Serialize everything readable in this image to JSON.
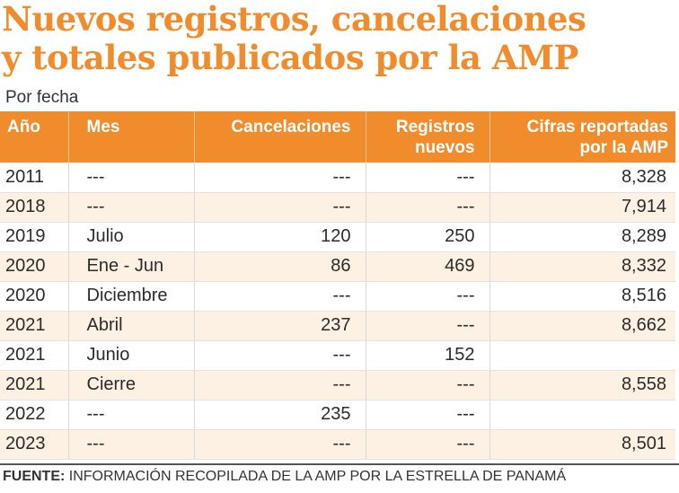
{
  "title_line1": "Nuevos registros, cancelaciones",
  "title_line2": "y totales publicados por la AMP",
  "subtitle": "Por fecha",
  "colors": {
    "header_bg": "#f08c2c",
    "title": "#f08c2c",
    "zebra": "#fdf1e3"
  },
  "chart_data": {
    "type": "table",
    "title": "Nuevos registros, cancelaciones y totales publicados por la AMP",
    "subtitle": "Por fecha",
    "columns": [
      "Año",
      "Mes",
      "Cancelaciones",
      "Registros nuevos",
      "Cifras reportadas por la AMP"
    ],
    "header": {
      "anio": "Año",
      "mes": "Mes",
      "cancelaciones": "Cancelaciones",
      "registros_l1": "Registros",
      "registros_l2": "nuevos",
      "cifras_l1": "Cifras reportadas",
      "cifras_l2": "por la AMP"
    },
    "rows": [
      {
        "anio": "2011",
        "mes": "---",
        "cancelaciones": "---",
        "registros": "---",
        "cifras": "8,328"
      },
      {
        "anio": "2018",
        "mes": "---",
        "cancelaciones": "---",
        "registros": "---",
        "cifras": "7,914"
      },
      {
        "anio": "2019",
        "mes": "Julio",
        "cancelaciones": "120",
        "registros": "250",
        "cifras": "8,289"
      },
      {
        "anio": "2020",
        "mes": "Ene - Jun",
        "cancelaciones": "86",
        "registros": "469",
        "cifras": "8,332"
      },
      {
        "anio": "2020",
        "mes": "Diciembre",
        "cancelaciones": "---",
        "registros": "---",
        "cifras": "8,516"
      },
      {
        "anio": "2021",
        "mes": "Abril",
        "cancelaciones": "237",
        "registros": "---",
        "cifras": "8,662"
      },
      {
        "anio": "2021",
        "mes": "Junio",
        "cancelaciones": "---",
        "registros": "152",
        "cifras": ""
      },
      {
        "anio": "2021",
        "mes": "Cierre",
        "cancelaciones": "---",
        "registros": "---",
        "cifras": "8,558"
      },
      {
        "anio": "2022",
        "mes": "---",
        "cancelaciones": "235",
        "registros": "---",
        "cifras": ""
      },
      {
        "anio": "2023",
        "mes": "---",
        "cancelaciones": "---",
        "registros": "---",
        "cifras": "8,501"
      }
    ]
  },
  "footer": {
    "label": "FUENTE:",
    "text": " INFORMACIÓN RECOPILADA DE LA AMP POR LA ESTRELLA DE PANAMÁ"
  }
}
